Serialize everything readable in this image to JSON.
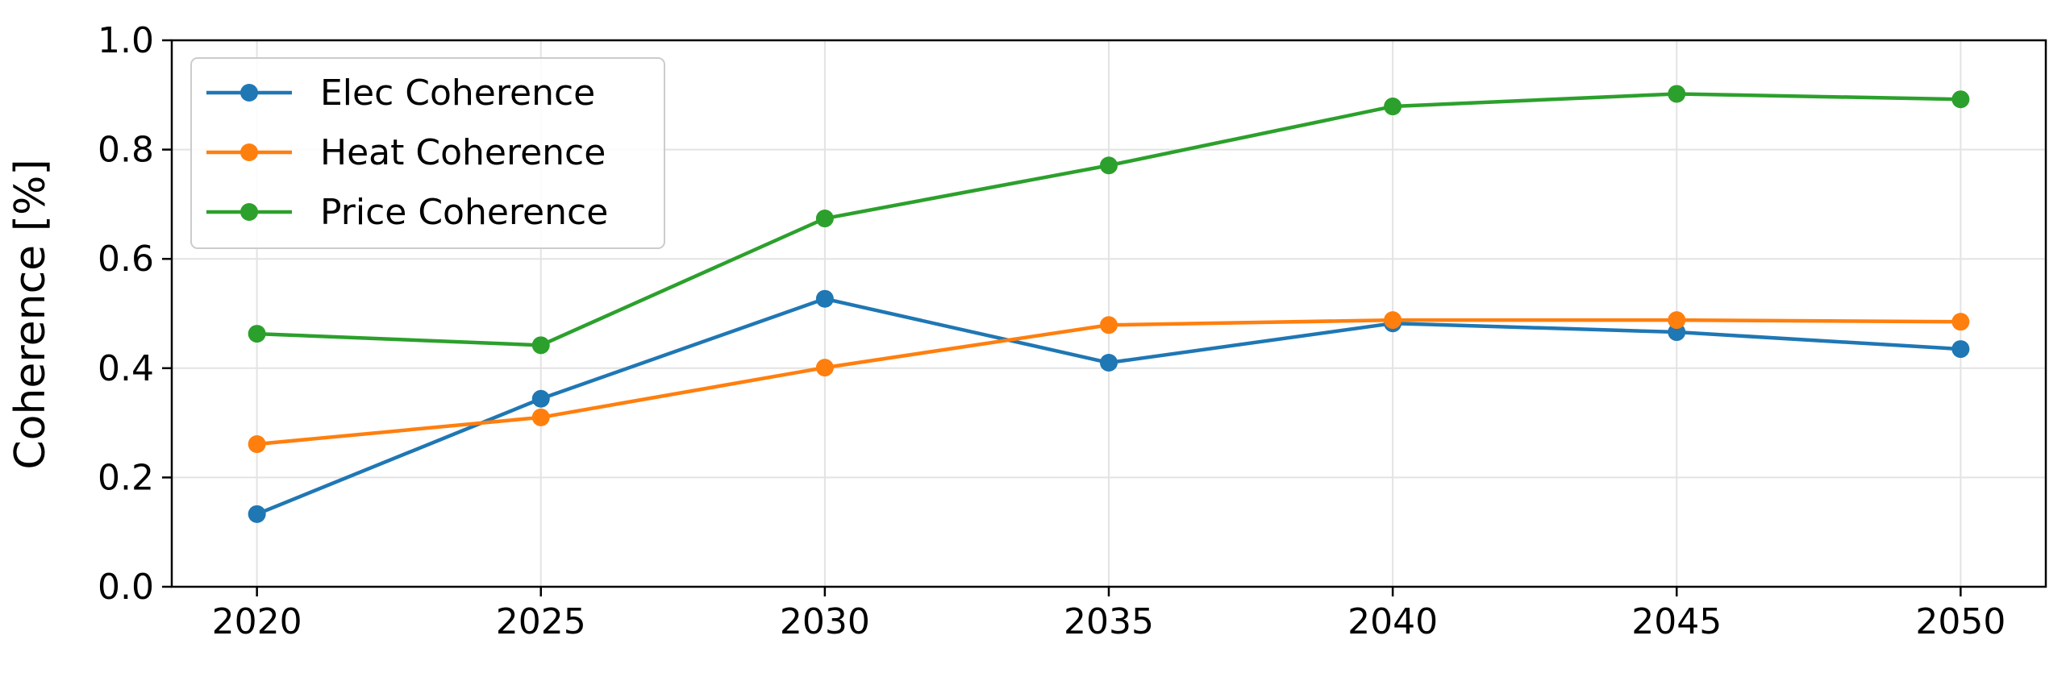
{
  "chart_data": {
    "type": "line",
    "title": "",
    "xlabel": "",
    "ylabel": "Coherence [%]",
    "x": [
      2020,
      2025,
      2030,
      2035,
      2040,
      2045,
      2050
    ],
    "xlim": [
      2018.5,
      2051.5
    ],
    "ylim": [
      0.0,
      1.0
    ],
    "xticks": [
      "2020",
      "2025",
      "2030",
      "2035",
      "2040",
      "2045",
      "2050"
    ],
    "yticks": [
      "0.0",
      "0.2",
      "0.4",
      "0.6",
      "0.8",
      "1.0"
    ],
    "grid": true,
    "legend_position": "top-left",
    "series": [
      {
        "name": "Elec Coherence",
        "color": "#1f77b4",
        "values": [
          0.133,
          0.344,
          0.527,
          0.41,
          0.482,
          0.466,
          0.435
        ]
      },
      {
        "name": "Heat Coherence",
        "color": "#ff7f0e",
        "values": [
          0.261,
          0.31,
          0.401,
          0.479,
          0.488,
          0.488,
          0.485
        ]
      },
      {
        "name": "Price Coherence",
        "color": "#2ca02c",
        "values": [
          0.463,
          0.442,
          0.674,
          0.771,
          0.879,
          0.902,
          0.892
        ]
      }
    ]
  }
}
